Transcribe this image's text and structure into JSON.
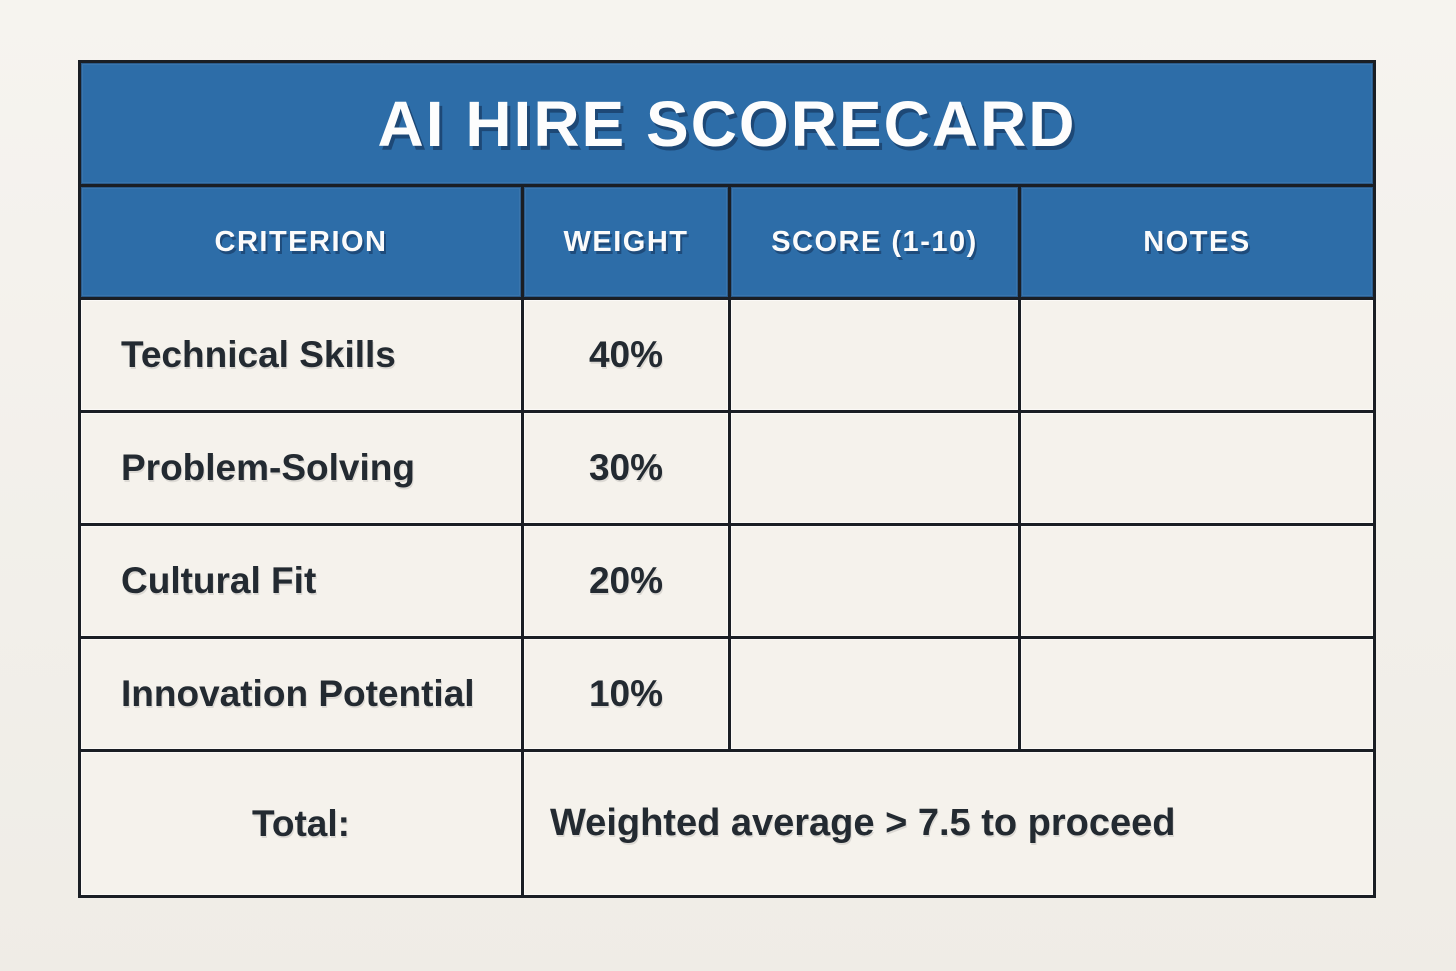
{
  "chart_data": {
    "type": "table",
    "title": "AI HIRE SCORECARD",
    "columns": [
      "CRITERION",
      "WEIGHT",
      "SCORE (1-10)",
      "NOTES"
    ],
    "rows": [
      {
        "criterion": "Technical Skills",
        "weight": "40%",
        "score": "",
        "notes": ""
      },
      {
        "criterion": "Problem-Solving",
        "weight": "30%",
        "score": "",
        "notes": ""
      },
      {
        "criterion": "Cultural Fit",
        "weight": "20%",
        "score": "",
        "notes": ""
      },
      {
        "criterion": "Innovation Potential",
        "weight": "10%",
        "score": "",
        "notes": ""
      }
    ],
    "weights_numeric": [
      40,
      30,
      20,
      10
    ],
    "footer": {
      "label": "Total:",
      "value": "Weighted average > 7.5 to proceed"
    },
    "threshold": 7.5,
    "layout_hints": {
      "grid": true,
      "header_fill": "#2d6da8",
      "body_fill": "#f5f2ec",
      "border_color": "#1a1e24",
      "page_background": "#f3f0ea",
      "header_text_color": "#ffffff",
      "body_text_color": "#232a31"
    }
  }
}
